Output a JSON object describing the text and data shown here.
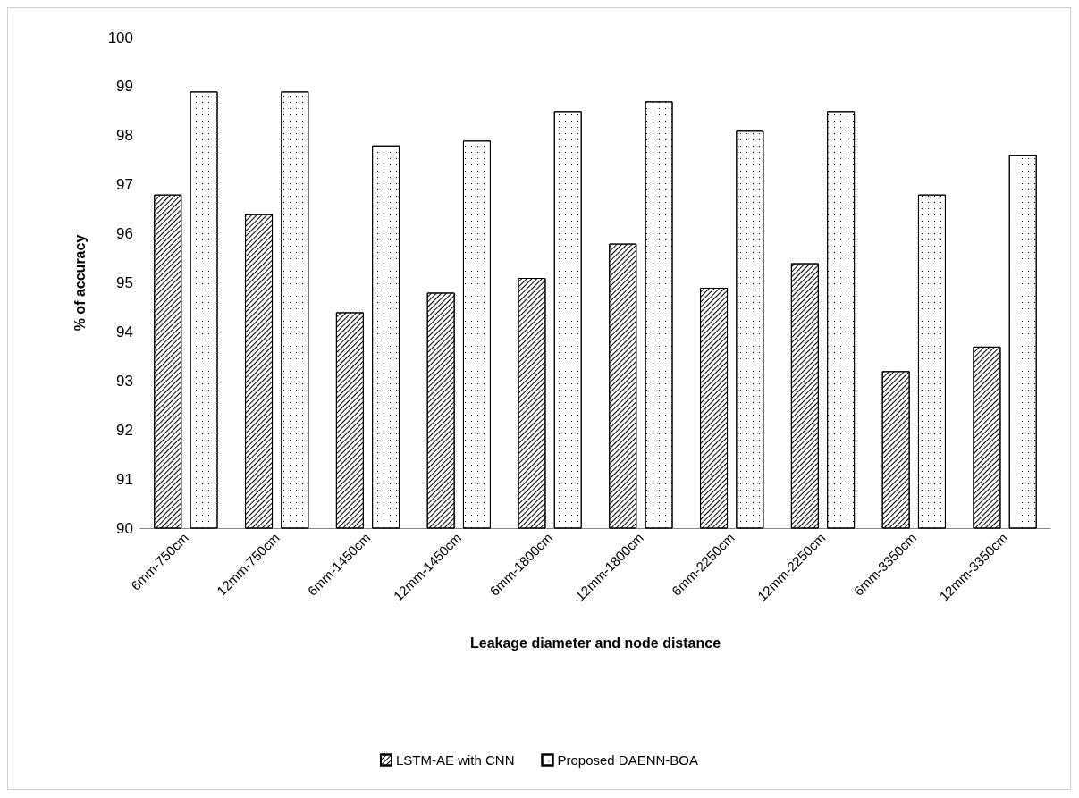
{
  "chart_data": {
    "type": "bar",
    "xlabel": "Leakage diameter and node distance",
    "ylabel": "% of accuracy",
    "categories": [
      "6mm-750cm",
      "12mm-750cm",
      "6mm-1450cm",
      "12mm-1450cm",
      "6mm-1800cm",
      "12mm-1800cm",
      "6mm-2250cm",
      "12mm-2250cm",
      "6mm-3350cm",
      "12mm-3350cm"
    ],
    "series": [
      {
        "name": "LSTM-AE with CNN",
        "color": "#ffffff",
        "values": [
          96.8,
          96.4,
          94.4,
          94.8,
          95.1,
          95.8,
          94.9,
          95.4,
          93.2,
          93.7
        ]
      },
      {
        "name": "Proposed DAENN-BOA",
        "color": "#ffffff",
        "values": [
          98.9,
          98.9,
          97.8,
          97.9,
          98.5,
          98.7,
          98.1,
          98.5,
          96.8,
          97.6
        ]
      }
    ],
    "ylim": [
      90,
      100
    ],
    "yticks": [
      90,
      91,
      92,
      93,
      94,
      95,
      96,
      97,
      98,
      99,
      100
    ],
    "grid": false,
    "legend": "bottom"
  }
}
